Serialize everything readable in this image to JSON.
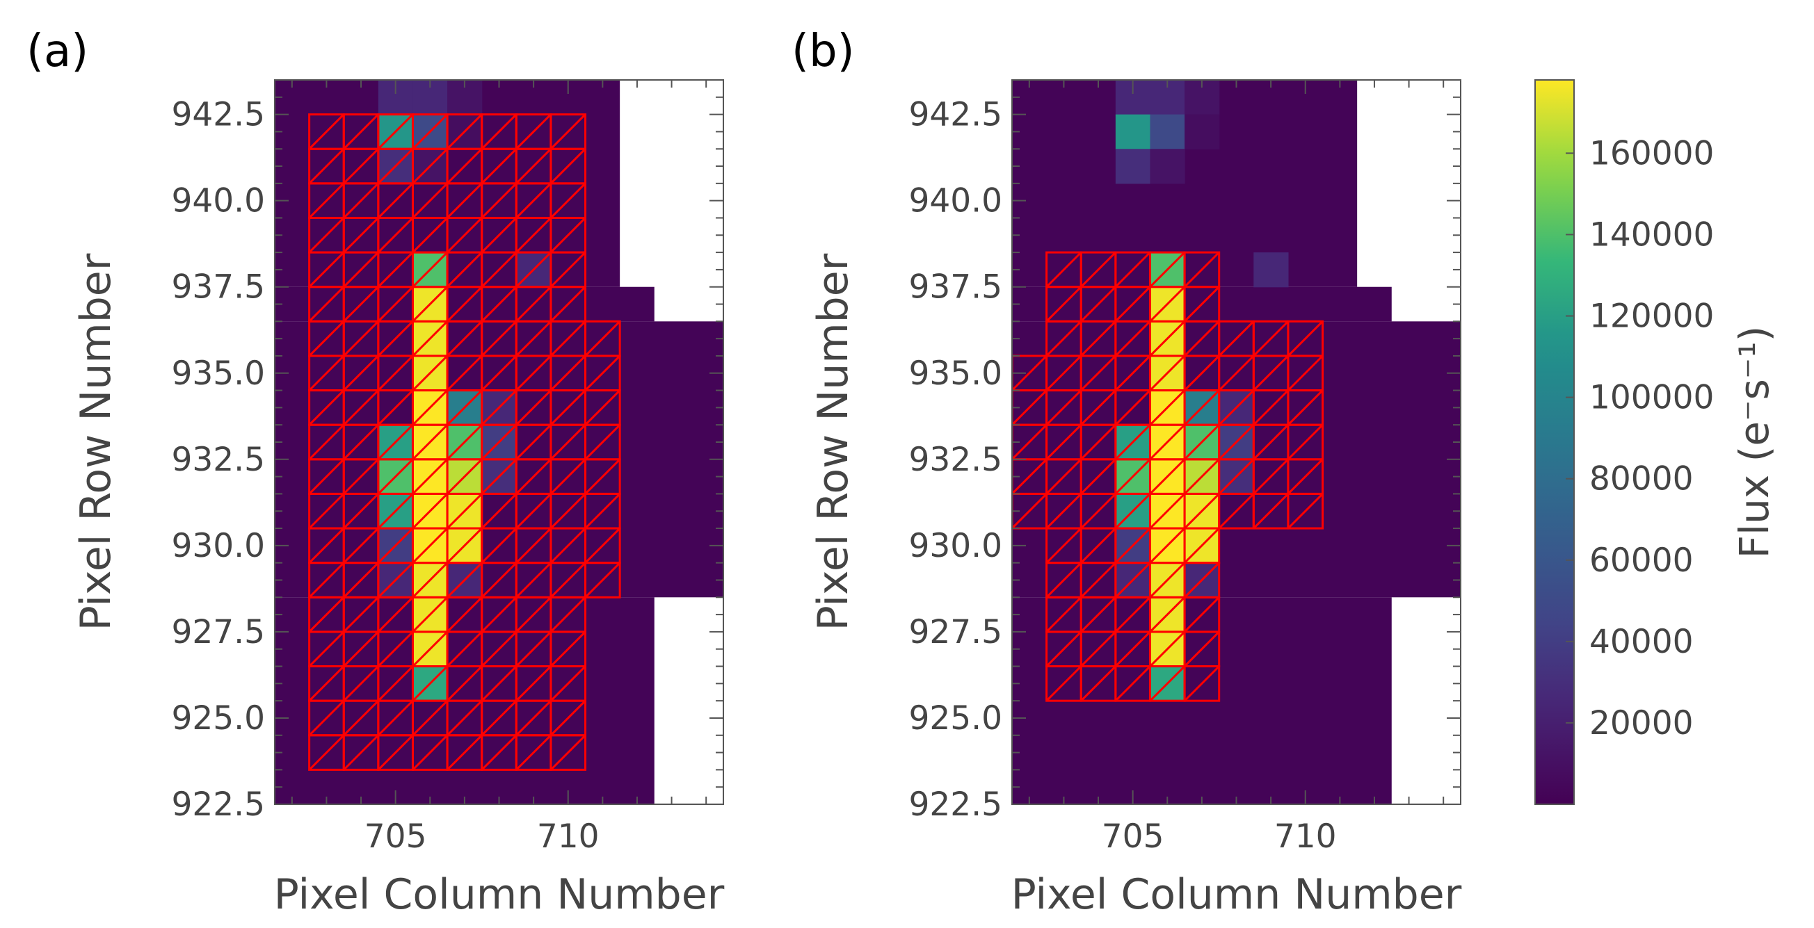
{
  "chart_data": {
    "type": "heatmap",
    "colorbar": {
      "label": "Flux (e⁻s⁻¹)",
      "range": [
        0,
        178000
      ],
      "ticks": [
        20000,
        40000,
        60000,
        80000,
        100000,
        120000,
        140000,
        160000
      ],
      "tick_labels": [
        "20000",
        "40000",
        "60000",
        "80000",
        "100000",
        "120000",
        "140000",
        "160000"
      ],
      "colormap": "viridis"
    },
    "panels": [
      {
        "label": "(a)",
        "xlabel": "Pixel Column Number",
        "ylabel": "Pixel Row Number",
        "xlim": [
          701.5,
          714.5
        ],
        "ylim": [
          922.5,
          943.5
        ],
        "xticks": [
          "705",
          "710"
        ],
        "yticks": [
          "922.5",
          "925.0",
          "927.5",
          "930.0",
          "932.5",
          "935.0",
          "937.5",
          "940.0",
          "942.5"
        ],
        "aperture": "rectangular",
        "flux_cells": [
          {
            "col": 705,
            "row": 943,
            "flux": 25000
          },
          {
            "col": 706,
            "row": 943,
            "flux": 25000
          },
          {
            "col": 707,
            "row": 943,
            "flux": 12000
          },
          {
            "col": 705,
            "row": 942,
            "flux": 115000
          },
          {
            "col": 706,
            "row": 942,
            "flux": 50000
          },
          {
            "col": 707,
            "row": 942,
            "flux": 8000
          },
          {
            "col": 705,
            "row": 941,
            "flux": 30000
          },
          {
            "col": 706,
            "row": 941,
            "flux": 12000
          },
          {
            "col": 706,
            "row": 938,
            "flux": 140000
          },
          {
            "col": 709,
            "row": 938,
            "flux": 25000
          },
          {
            "col": 706,
            "row": 937,
            "flux": 175000
          },
          {
            "col": 706,
            "row": 936,
            "flux": 175000
          },
          {
            "col": 706,
            "row": 935,
            "flux": 175000
          },
          {
            "col": 706,
            "row": 934,
            "flux": 178000
          },
          {
            "col": 707,
            "row": 934,
            "flux": 95000
          },
          {
            "col": 708,
            "row": 934,
            "flux": 25000
          },
          {
            "col": 705,
            "row": 933,
            "flux": 120000
          },
          {
            "col": 706,
            "row": 933,
            "flux": 178000
          },
          {
            "col": 707,
            "row": 933,
            "flux": 140000
          },
          {
            "col": 708,
            "row": 933,
            "flux": 40000
          },
          {
            "col": 705,
            "row": 932,
            "flux": 140000
          },
          {
            "col": 706,
            "row": 932,
            "flux": 178000
          },
          {
            "col": 707,
            "row": 932,
            "flux": 165000
          },
          {
            "col": 708,
            "row": 932,
            "flux": 30000
          },
          {
            "col": 705,
            "row": 931,
            "flux": 120000
          },
          {
            "col": 706,
            "row": 931,
            "flux": 178000
          },
          {
            "col": 707,
            "row": 931,
            "flux": 175000
          },
          {
            "col": 705,
            "row": 930,
            "flux": 40000
          },
          {
            "col": 706,
            "row": 930,
            "flux": 178000
          },
          {
            "col": 707,
            "row": 930,
            "flux": 175000
          },
          {
            "col": 705,
            "row": 929,
            "flux": 25000
          },
          {
            "col": 706,
            "row": 929,
            "flux": 175000
          },
          {
            "col": 707,
            "row": 929,
            "flux": 25000
          },
          {
            "col": 706,
            "row": 928,
            "flux": 175000
          },
          {
            "col": 706,
            "row": 927,
            "flux": 175000
          },
          {
            "col": 706,
            "row": 926,
            "flux": 125000
          }
        ]
      },
      {
        "label": "(b)",
        "xlabel": "Pixel Column Number",
        "ylabel": "Pixel Row Number",
        "xlim": [
          701.5,
          714.5
        ],
        "ylim": [
          922.5,
          943.5
        ],
        "xticks": [
          "705",
          "710"
        ],
        "yticks": [
          "922.5",
          "925.0",
          "927.5",
          "930.0",
          "932.5",
          "935.0",
          "937.5",
          "940.0",
          "942.5"
        ],
        "aperture": "cross",
        "flux_cells": [
          {
            "col": 705,
            "row": 943,
            "flux": 25000
          },
          {
            "col": 706,
            "row": 943,
            "flux": 25000
          },
          {
            "col": 707,
            "row": 943,
            "flux": 12000
          },
          {
            "col": 705,
            "row": 942,
            "flux": 115000
          },
          {
            "col": 706,
            "row": 942,
            "flux": 50000
          },
          {
            "col": 707,
            "row": 942,
            "flux": 8000
          },
          {
            "col": 705,
            "row": 941,
            "flux": 30000
          },
          {
            "col": 706,
            "row": 941,
            "flux": 12000
          },
          {
            "col": 706,
            "row": 938,
            "flux": 140000
          },
          {
            "col": 709,
            "row": 938,
            "flux": 25000
          },
          {
            "col": 706,
            "row": 937,
            "flux": 175000
          },
          {
            "col": 706,
            "row": 936,
            "flux": 175000
          },
          {
            "col": 706,
            "row": 935,
            "flux": 175000
          },
          {
            "col": 706,
            "row": 934,
            "flux": 178000
          },
          {
            "col": 707,
            "row": 934,
            "flux": 95000
          },
          {
            "col": 708,
            "row": 934,
            "flux": 25000
          },
          {
            "col": 705,
            "row": 933,
            "flux": 120000
          },
          {
            "col": 706,
            "row": 933,
            "flux": 178000
          },
          {
            "col": 707,
            "row": 933,
            "flux": 140000
          },
          {
            "col": 708,
            "row": 933,
            "flux": 40000
          },
          {
            "col": 705,
            "row": 932,
            "flux": 140000
          },
          {
            "col": 706,
            "row": 932,
            "flux": 178000
          },
          {
            "col": 707,
            "row": 932,
            "flux": 165000
          },
          {
            "col": 708,
            "row": 932,
            "flux": 30000
          },
          {
            "col": 705,
            "row": 931,
            "flux": 120000
          },
          {
            "col": 706,
            "row": 931,
            "flux": 178000
          },
          {
            "col": 707,
            "row": 931,
            "flux": 175000
          },
          {
            "col": 705,
            "row": 930,
            "flux": 40000
          },
          {
            "col": 706,
            "row": 930,
            "flux": 178000
          },
          {
            "col": 707,
            "row": 930,
            "flux": 175000
          },
          {
            "col": 705,
            "row": 929,
            "flux": 25000
          },
          {
            "col": 706,
            "row": 929,
            "flux": 175000
          },
          {
            "col": 707,
            "row": 929,
            "flux": 25000
          },
          {
            "col": 706,
            "row": 928,
            "flux": 175000
          },
          {
            "col": 706,
            "row": 927,
            "flux": 175000
          },
          {
            "col": 706,
            "row": 926,
            "flux": 125000
          }
        ]
      }
    ]
  }
}
